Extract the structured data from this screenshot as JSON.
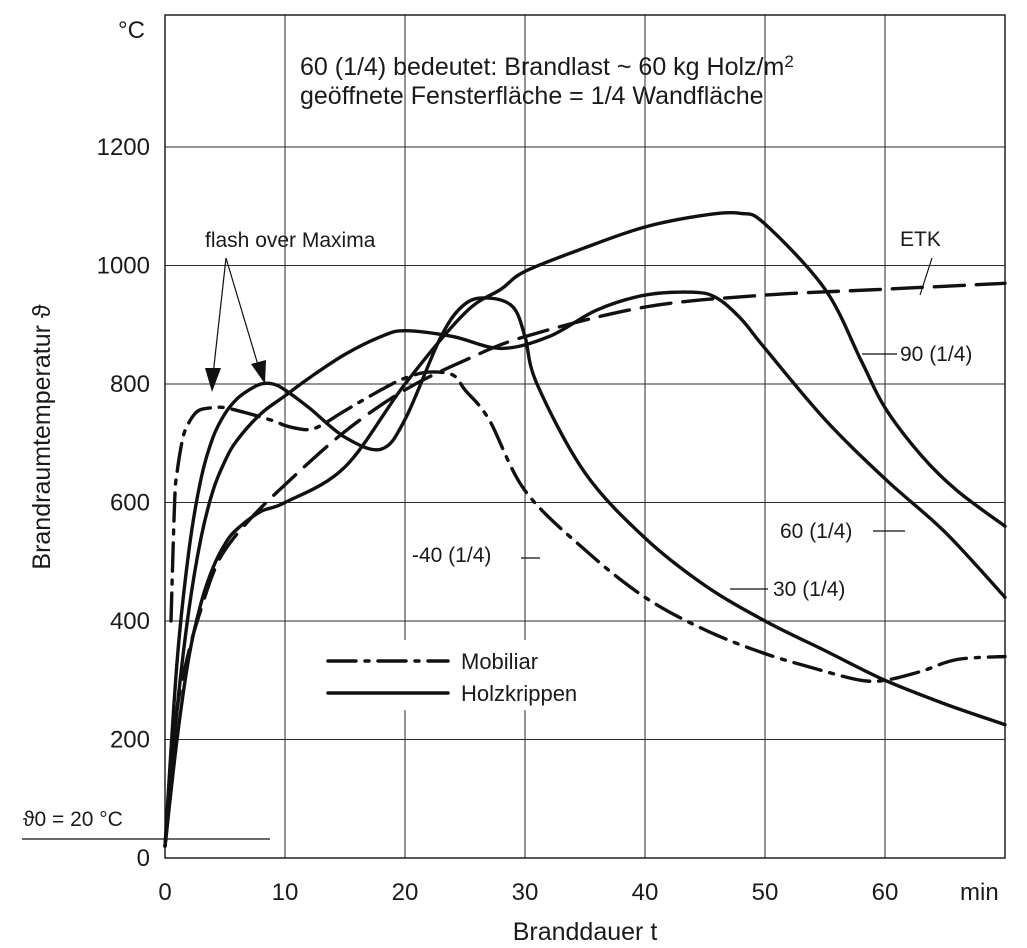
{
  "chart_data": {
    "type": "line",
    "title_lines": [
      "60 (1/4) bedeutet: Brandlast ~ 60 kg Holz/m",
      "geöffnete Fensterfläche = 1/4 Wandfläche"
    ],
    "title_superscript": "2",
    "xlabel": "Branddauer t",
    "ylabel": "Brandraumtemperatur ϑ",
    "x_unit": "min",
    "y_unit": "°C",
    "xlim": [
      0,
      70
    ],
    "ylim": [
      0,
      1200
    ],
    "x_ticks": [
      0,
      10,
      20,
      30,
      40,
      50,
      60
    ],
    "y_ticks": [
      0,
      200,
      400,
      600,
      800,
      1000,
      1200
    ],
    "grid": true,
    "reference_line": {
      "label": "ϑ0 = 20 °C",
      "y": 20
    },
    "legend": [
      {
        "label": "Mobiliar",
        "style": "dashdot"
      },
      {
        "label": "Holzkrippen",
        "style": "solid"
      }
    ],
    "annotations": {
      "flash_over": "flash over Maxima",
      "etk": "ETK",
      "label_90": "90 (1/4)",
      "label_60": "60 (1/4)",
      "label_30": "30 (1/4)",
      "label_40": "-40 (1/4)"
    },
    "series": [
      {
        "name": "ETK",
        "style": "dashed",
        "x": [
          0,
          0.5,
          1,
          2,
          3,
          4,
          5,
          7,
          10,
          15,
          20,
          25,
          30,
          40,
          50,
          60,
          70
        ],
        "y": [
          20,
          120,
          250,
          350,
          420,
          480,
          520,
          570,
          630,
          720,
          790,
          840,
          880,
          930,
          950,
          960,
          970
        ]
      },
      {
        "name": "90 (1/4)",
        "style": "solid",
        "x": [
          0,
          1,
          2,
          3,
          4,
          5,
          6,
          8,
          10,
          15,
          20,
          25,
          28,
          30,
          35,
          40,
          45,
          48,
          50,
          55,
          58,
          60,
          63,
          66,
          70
        ],
        "y": [
          20,
          200,
          340,
          430,
          490,
          530,
          555,
          585,
          600,
          660,
          800,
          920,
          960,
          990,
          1030,
          1065,
          1085,
          1088,
          1070,
          960,
          840,
          760,
          680,
          620,
          560
        ]
      },
      {
        "name": "60 (1/4)",
        "style": "solid",
        "x": [
          0,
          1,
          2,
          3,
          4,
          5,
          6,
          8,
          10,
          12,
          15,
          18,
          20,
          24,
          28,
          32,
          36,
          40,
          44,
          46,
          48,
          50,
          55,
          60,
          65,
          70
        ],
        "y": [
          20,
          250,
          420,
          540,
          620,
          670,
          705,
          750,
          780,
          810,
          850,
          880,
          890,
          880,
          860,
          880,
          925,
          950,
          955,
          945,
          910,
          860,
          740,
          640,
          550,
          440
        ]
      },
      {
        "name": "30 (1/4)",
        "style": "solid",
        "x": [
          0,
          1,
          2,
          3,
          4,
          5,
          6,
          7,
          8,
          9,
          10,
          12,
          15,
          18,
          20,
          23,
          25,
          27,
          29,
          30,
          31,
          35,
          40,
          45,
          50,
          55,
          60,
          65,
          70
        ],
        "y": [
          20,
          330,
          520,
          640,
          710,
          750,
          775,
          790,
          800,
          800,
          790,
          760,
          710,
          690,
          740,
          880,
          935,
          945,
          930,
          880,
          800,
          650,
          540,
          460,
          400,
          350,
          300,
          260,
          225
        ]
      },
      {
        "name": "-40 (1/4)",
        "style": "dashdot",
        "x": [
          0.5,
          0.8,
          1,
          1.5,
          2,
          2.5,
          3,
          4,
          5,
          7,
          9,
          10,
          11,
          12,
          13,
          15,
          18,
          20,
          22,
          24,
          25,
          27,
          30,
          35,
          40,
          45,
          50,
          55,
          58,
          60,
          63,
          66,
          70
        ],
        "y": [
          400,
          600,
          650,
          710,
          735,
          750,
          757,
          760,
          760,
          750,
          738,
          730,
          725,
          723,
          730,
          755,
          790,
          810,
          820,
          815,
          790,
          740,
          620,
          520,
          440,
          385,
          345,
          315,
          300,
          300,
          315,
          335,
          340
        ]
      }
    ]
  }
}
